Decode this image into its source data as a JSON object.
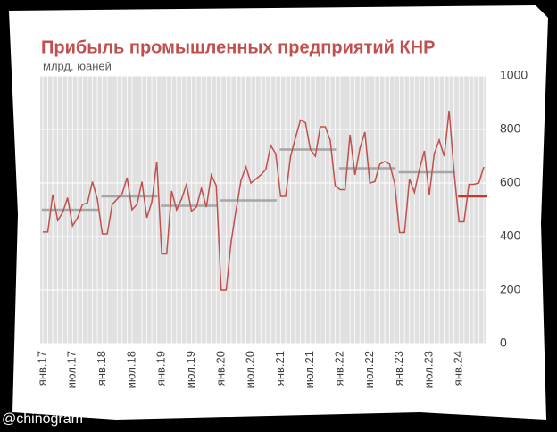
{
  "chart_data": {
    "type": "line",
    "title": "Прибыль промышленных предприятий КНР",
    "subtitle": "млрд. юаней",
    "watermark": "@chinogram",
    "categories": [
      "янв.17",
      null,
      null,
      null,
      null,
      null,
      "июл.17",
      null,
      null,
      null,
      null,
      null,
      "янв.18",
      null,
      null,
      null,
      null,
      null,
      "июл.18",
      null,
      null,
      null,
      null,
      null,
      "янв.19",
      null,
      null,
      null,
      null,
      null,
      "июл.19",
      null,
      null,
      null,
      null,
      null,
      "янв.20",
      null,
      null,
      null,
      null,
      null,
      "июл.20",
      null,
      null,
      null,
      null,
      null,
      "янв.21",
      null,
      null,
      null,
      null,
      null,
      "июл.21",
      null,
      null,
      null,
      null,
      null,
      "янв.22",
      null,
      null,
      null,
      null,
      null,
      "июл.22",
      null,
      null,
      null,
      null,
      null,
      "янв.23",
      null,
      null,
      null,
      null,
      null,
      "июл.23",
      null,
      null,
      null,
      null,
      null,
      "янв.24",
      null,
      null,
      null,
      null,
      null
    ],
    "series": [
      {
        "color": "#c0504d",
        "values": [
          417,
          417,
          557,
          460,
          490,
          545,
          440,
          470,
          520,
          525,
          605,
          540,
          410,
          410,
          520,
          540,
          560,
          620,
          500,
          520,
          605,
          470,
          530,
          680,
          335,
          335,
          570,
          500,
          540,
          595,
          495,
          510,
          580,
          510,
          630,
          590,
          200,
          200,
          380,
          500,
          610,
          660,
          600,
          615,
          630,
          650,
          740,
          710,
          550,
          550,
          700,
          770,
          835,
          825,
          725,
          700,
          810,
          810,
          760,
          590,
          575,
          575,
          780,
          630,
          730,
          790,
          600,
          605,
          670,
          680,
          670,
          600,
          415,
          415,
          615,
          565,
          650,
          720,
          555,
          710,
          760,
          700,
          870,
          640,
          455,
          455,
          595,
          595,
          600,
          660
        ]
      }
    ],
    "averages": [
      {
        "value": 500,
        "color": "#a6a6a6"
      },
      {
        "value": 550,
        "color": "#a6a6a6"
      },
      {
        "value": 515,
        "color": "#a6a6a6"
      },
      {
        "value": 535,
        "color": "#a6a6a6"
      },
      {
        "value": 725,
        "color": "#a6a6a6"
      },
      {
        "value": 655,
        "color": "#a6a6a6"
      },
      {
        "value": 640,
        "color": "#a6a6a6"
      },
      {
        "value": 550,
        "color": "#c0392b"
      }
    ],
    "ylim": [
      0,
      1000
    ],
    "yticks": [
      0,
      200,
      400,
      600,
      800,
      1000
    ],
    "grid": true
  }
}
